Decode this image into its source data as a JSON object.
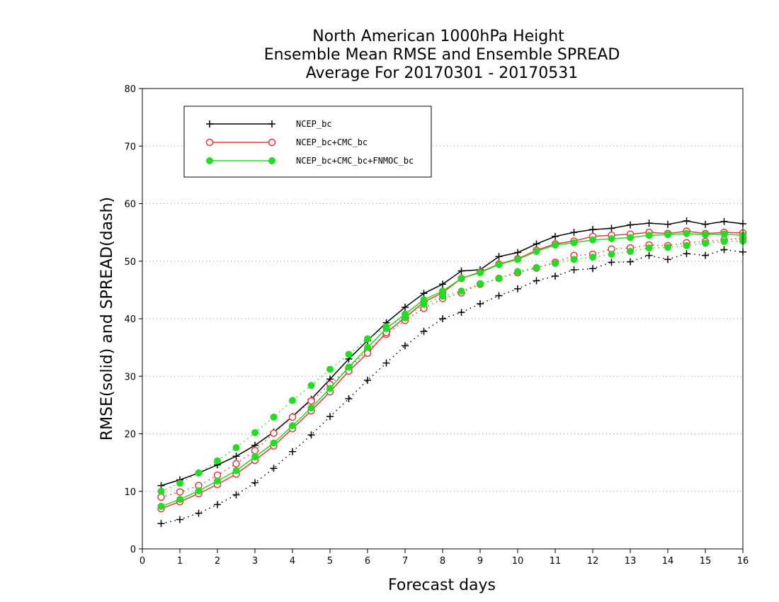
{
  "chart_data": {
    "type": "line",
    "title": [
      "North American 1000hPa Height",
      "Ensemble Mean RMSE and Ensemble SPREAD",
      "Average For 20170301 - 20170531"
    ],
    "xlabel": "Forecast days",
    "ylabel": "RMSE(solid) and SPREAD(dash)",
    "xlim": [
      0,
      16
    ],
    "ylim": [
      0,
      80
    ],
    "xticks": [
      0,
      1,
      2,
      3,
      4,
      5,
      6,
      7,
      8,
      9,
      10,
      11,
      12,
      13,
      14,
      15,
      16
    ],
    "yticks": [
      0,
      10,
      20,
      30,
      40,
      50,
      60,
      70,
      80
    ],
    "grid": "horizontal-dotted",
    "legend_position": "top-left",
    "x": [
      0.5,
      1,
      1.5,
      2,
      2.5,
      3,
      3.5,
      4,
      4.5,
      5,
      5.5,
      6,
      6.5,
      7,
      7.5,
      8,
      8.5,
      9,
      9.5,
      10,
      10.5,
      11,
      11.5,
      12,
      12.5,
      13,
      13.5,
      14,
      14.5,
      15,
      15.5,
      16
    ],
    "series": [
      {
        "name": "NCEP_bc",
        "color": "#000000",
        "marker": "plus",
        "rmse": [
          11.0,
          12.0,
          13.2,
          14.6,
          16.1,
          18.0,
          20.3,
          23.0,
          26.0,
          29.5,
          33.0,
          36.2,
          39.3,
          42.0,
          44.4,
          46.0,
          48.3,
          48.5,
          50.8,
          51.5,
          53.0,
          54.3,
          55.0,
          55.5,
          55.7,
          56.3,
          56.6,
          56.4,
          57.0,
          56.4,
          56.9,
          56.5
        ],
        "spread": [
          4.4,
          5.1,
          6.2,
          7.7,
          9.4,
          11.5,
          14.0,
          16.9,
          19.8,
          23.0,
          26.1,
          29.3,
          32.3,
          35.3,
          37.8,
          40.0,
          41.1,
          42.6,
          44.0,
          45.2,
          46.6,
          47.4,
          48.5,
          48.7,
          49.8,
          49.9,
          51.0,
          50.3,
          51.3,
          51.0,
          52.0,
          51.6
        ]
      },
      {
        "name": "NCEP_bc+CMC_bc",
        "color": "#e8393a",
        "marker": "open-circle",
        "rmse": [
          7.0,
          8.2,
          9.6,
          11.2,
          13.0,
          15.4,
          17.9,
          20.9,
          24.0,
          27.3,
          30.9,
          34.0,
          37.6,
          40.2,
          42.9,
          44.5,
          47.0,
          48.1,
          49.5,
          50.4,
          51.9,
          53.0,
          53.5,
          54.3,
          54.5,
          54.7,
          55.0,
          54.8,
          55.2,
          54.8,
          55.0,
          54.9
        ],
        "spread": [
          9.0,
          9.9,
          11.0,
          12.8,
          14.8,
          17.1,
          20.1,
          22.9,
          25.7,
          28.6,
          31.4,
          34.5,
          37.3,
          39.7,
          41.8,
          43.5,
          44.5,
          46.0,
          47.0,
          48.0,
          48.8,
          49.8,
          51.0,
          51.2,
          52.1,
          52.3,
          52.8,
          52.7,
          53.2,
          53.4,
          53.7,
          54.0
        ]
      },
      {
        "name": "NCEP_bc+CMC_bc+FNMOC_bc",
        "color": "#22dd22",
        "marker": "filled-circle",
        "rmse": [
          7.4,
          8.6,
          10.1,
          11.8,
          13.6,
          16.0,
          18.4,
          21.4,
          24.5,
          27.9,
          31.6,
          35.0,
          38.3,
          40.8,
          43.3,
          44.8,
          47.0,
          48.0,
          49.4,
          50.3,
          51.7,
          52.8,
          53.2,
          53.7,
          53.9,
          54.1,
          54.5,
          54.6,
          54.8,
          54.6,
          54.7,
          54.5
        ],
        "spread": [
          10.0,
          11.4,
          13.2,
          15.3,
          17.6,
          20.2,
          22.9,
          25.8,
          28.4,
          31.2,
          33.8,
          36.5,
          38.6,
          40.2,
          42.5,
          43.9,
          44.8,
          46.1,
          47.0,
          48.2,
          48.9,
          49.6,
          50.3,
          50.7,
          51.2,
          51.7,
          52.3,
          52.4,
          52.7,
          53.1,
          53.4,
          53.5
        ]
      }
    ]
  }
}
